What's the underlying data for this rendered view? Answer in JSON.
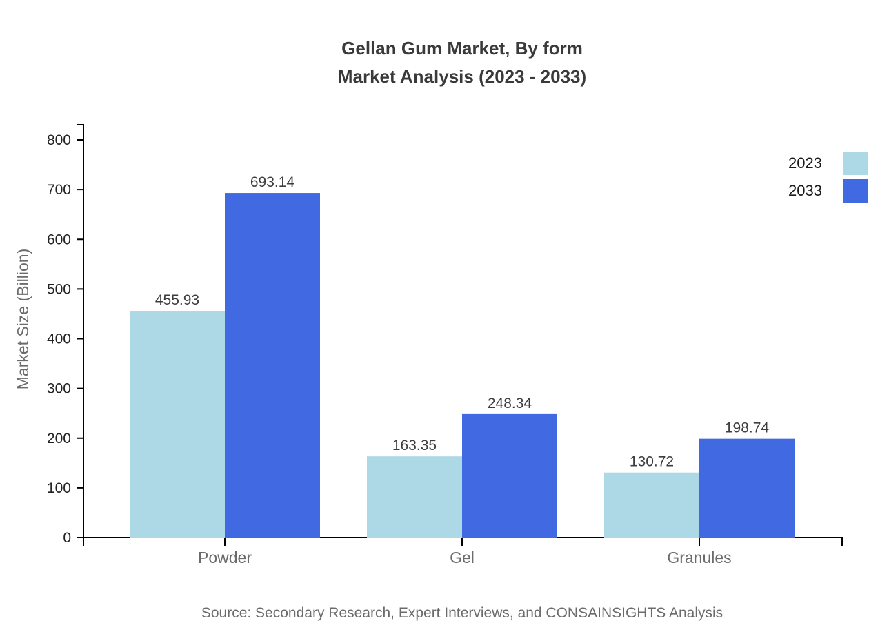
{
  "title": {
    "line1": "Gellan Gum Market, By form",
    "line2": "Market Analysis (2023 - 2033)"
  },
  "source": "Source: Secondary Research, Expert Interviews, and CONSAINSIGHTS Analysis",
  "legend": {
    "items": [
      {
        "label": "2023"
      },
      {
        "label": "2033"
      }
    ]
  },
  "chart_data": {
    "type": "bar",
    "categories": [
      "Powder",
      "Gel",
      "Granules"
    ],
    "series": [
      {
        "name": "2023",
        "color": "#ADD8E6",
        "values": [
          455.93,
          163.35,
          130.72
        ]
      },
      {
        "name": "2033",
        "color": "#4169E1",
        "values": [
          693.14,
          248.34,
          198.74
        ]
      }
    ],
    "bar_value_labels": [
      [
        "455.93",
        "163.35",
        "130.72"
      ],
      [
        "693.14",
        "248.34",
        "198.74"
      ]
    ],
    "title": "Gellan Gum Market, By form Market Analysis (2023 - 2033)",
    "xlabel": "",
    "ylabel": "Market Size (Billion)",
    "ylim": [
      0,
      800
    ],
    "yticks": [
      0,
      100,
      200,
      300,
      400,
      500,
      600,
      700,
      800
    ],
    "grid": false,
    "legend_position": "top-right",
    "colors": {
      "axis": "#000000",
      "tick_label": "#222222",
      "category_label": "#6b6b6b",
      "value_label": "#3d3d3d",
      "muted_text": "#6b6b6b",
      "title_text": "#3a3a3a",
      "background": "#ffffff"
    }
  }
}
